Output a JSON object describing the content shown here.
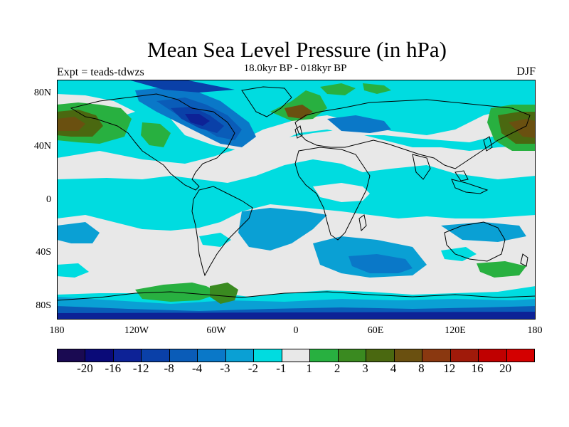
{
  "title": "Mean Sea Level Pressure (in hPa)",
  "subtitle_left": "Expt = teads-tdwzs",
  "subtitle_center": "18.0kyr BP - 018kyr BP",
  "subtitle_right": "DJF",
  "lat_labels": [
    "80N",
    "40N",
    "0",
    "40S",
    "80S"
  ],
  "lon_labels": [
    "180",
    "120W",
    "60W",
    "0",
    "60E",
    "120E",
    "180"
  ],
  "colorbar": {
    "colors": [
      "#1a0a52",
      "#0a0a78",
      "#0d2296",
      "#0a40a8",
      "#0a5cb8",
      "#0a78c8",
      "#0aa0d4",
      "#00dce0",
      "#e8e8e8",
      "#28b040",
      "#3a8a20",
      "#4a6810",
      "#6a5010",
      "#8a3810",
      "#a01a0a",
      "#c00000",
      "#d40000"
    ],
    "labels": [
      "-20",
      "-16",
      "-12",
      "-8",
      "-4",
      "-3",
      "-2",
      "-1",
      "1",
      "2",
      "3",
      "4",
      "8",
      "12",
      "16",
      "20"
    ]
  }
}
